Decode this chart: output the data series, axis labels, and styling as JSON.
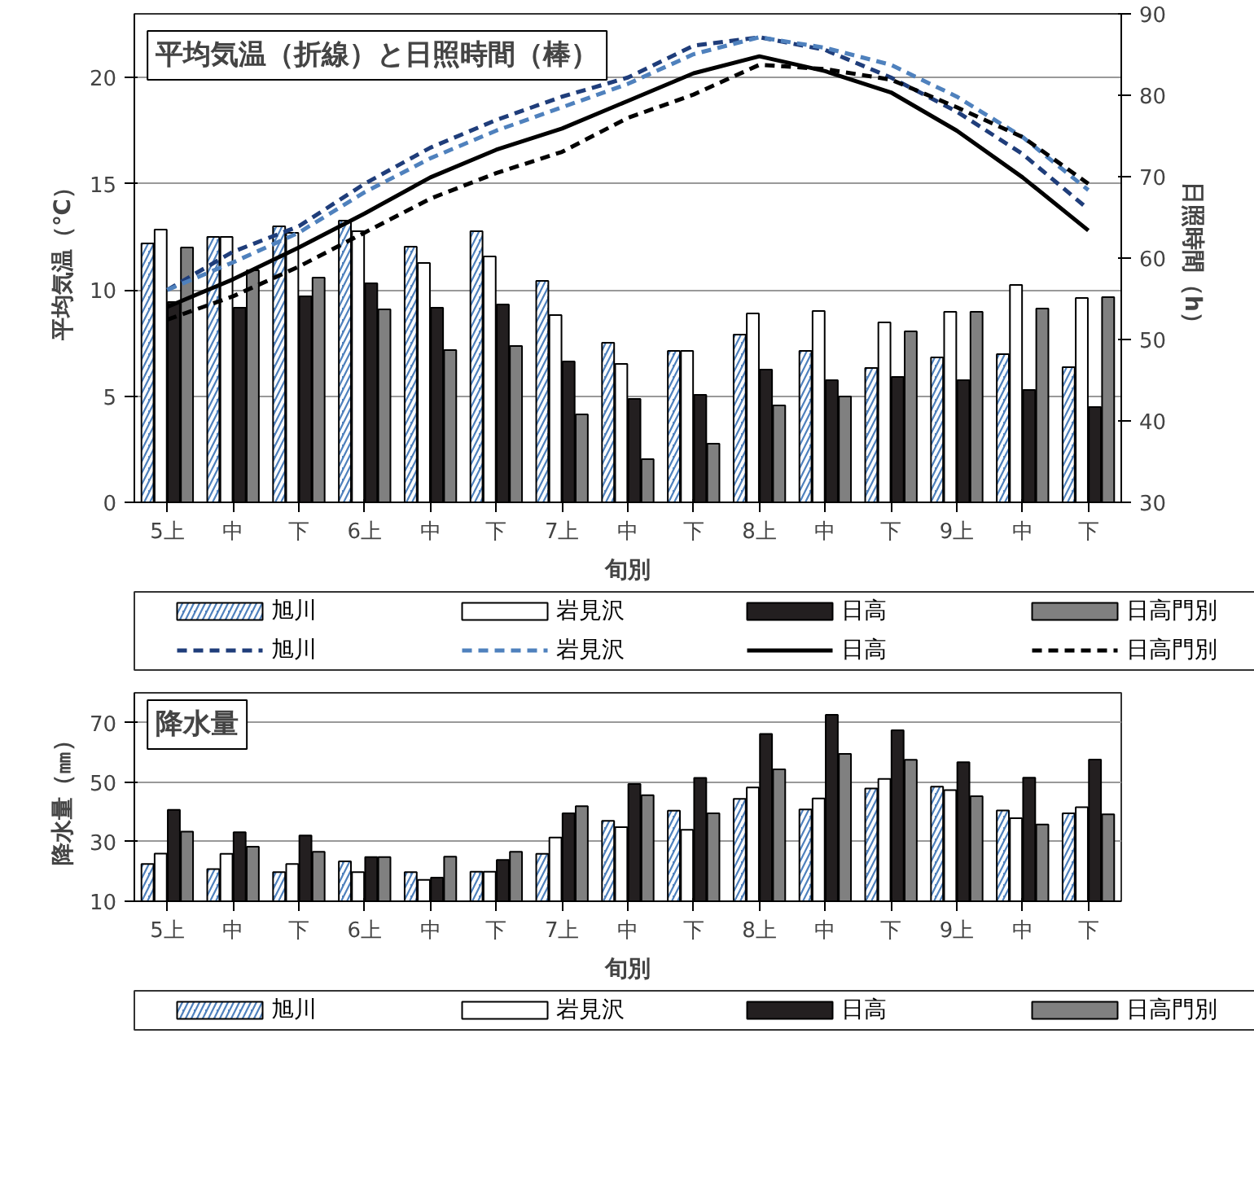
{
  "chart_data": [
    {
      "type": "bar",
      "title": "平均気温（折線）と日照時間（棒）",
      "xlabel": "旬別",
      "ylabel": "平均気温（℃）",
      "y2label": "日照時間（h）",
      "categories": [
        "5上",
        "中",
        "下",
        "6上",
        "中",
        "下",
        "7上",
        "中",
        "下",
        "8上",
        "中",
        "下",
        "9上",
        "中",
        "下"
      ],
      "ylim": [
        0,
        23
      ],
      "yticks": [
        0,
        5,
        10,
        15,
        20
      ],
      "y2lim": [
        30,
        90
      ],
      "y2ticks": [
        30,
        40,
        50,
        60,
        70,
        80,
        90
      ],
      "grid": "y",
      "legend": "bottom",
      "series": [
        {
          "name": "旭川",
          "axis": "y2",
          "color": "#4f81bd",
          "values": [
            61.8,
            62.6,
            63.9,
            64.6,
            61.4,
            63.3,
            57.2,
            49.6,
            48.6,
            50.6,
            48.6,
            46.5,
            47.8,
            48.2,
            46.6
          ]
        },
        {
          "name": "岩見沢",
          "axis": "y2",
          "color": "#ffffff",
          "values": [
            63.5,
            62.6,
            63.1,
            63.3,
            59.4,
            60.2,
            53.0,
            47.0,
            48.6,
            53.2,
            53.5,
            52.1,
            53.4,
            56.7,
            55.1
          ]
        },
        {
          "name": "日高",
          "axis": "y2",
          "color": "#231f20",
          "values": [
            54.6,
            53.9,
            55.3,
            56.9,
            53.9,
            54.3,
            47.3,
            42.7,
            43.2,
            46.3,
            45.0,
            45.4,
            45.0,
            43.8,
            41.7
          ]
        },
        {
          "name": "日高門別",
          "axis": "y2",
          "color": "#808080",
          "values": [
            61.3,
            58.5,
            57.6,
            53.7,
            48.7,
            49.2,
            40.8,
            35.3,
            37.2,
            41.9,
            43.0,
            51.0,
            53.4,
            53.8,
            55.2
          ]
        },
        {
          "name": "旭川",
          "type": "line",
          "axis": "y",
          "line_style": "dashed",
          "color": "#1f3d7a",
          "values": [
            10.0,
            11.8,
            13.0,
            15.0,
            16.7,
            18.0,
            19.1,
            20.0,
            21.5,
            21.9,
            21.3,
            20.0,
            18.4,
            16.4,
            13.8
          ]
        },
        {
          "name": "岩見沢",
          "type": "line",
          "axis": "y",
          "line_style": "dashed",
          "color": "#4f81bd",
          "values": [
            10.0,
            11.3,
            12.7,
            14.6,
            16.2,
            17.5,
            18.6,
            19.7,
            21.1,
            21.9,
            21.4,
            20.6,
            19.1,
            17.2,
            14.7
          ]
        },
        {
          "name": "日高",
          "type": "line",
          "axis": "y",
          "line_style": "solid",
          "color": "#000000",
          "values": [
            9.2,
            10.5,
            12.0,
            13.6,
            15.3,
            16.6,
            17.6,
            18.9,
            20.2,
            21.0,
            20.3,
            19.3,
            17.5,
            15.3,
            12.8
          ]
        },
        {
          "name": "日高門別",
          "type": "line",
          "axis": "y",
          "line_style": "dashed",
          "color": "#000000",
          "values": [
            8.6,
            9.7,
            11.1,
            12.7,
            14.3,
            15.5,
            16.5,
            18.1,
            19.2,
            20.6,
            20.4,
            19.9,
            18.6,
            17.2,
            15.0
          ]
        }
      ]
    },
    {
      "type": "bar",
      "title": "降水量",
      "xlabel": "旬別",
      "ylabel": "降水量（㎜）",
      "categories": [
        "5上",
        "中",
        "下",
        "6上",
        "中",
        "下",
        "7上",
        "中",
        "下",
        "8上",
        "中",
        "下",
        "9上",
        "中",
        "下"
      ],
      "ylim": [
        10,
        80
      ],
      "yticks": [
        10,
        30,
        50,
        70
      ],
      "grid": "y",
      "legend": "bottom",
      "series": [
        {
          "name": "旭川",
          "color": "#4f81bd",
          "values": [
            22.5,
            20.8,
            19.8,
            23.4,
            19.8,
            19.9,
            25.9,
            37.0,
            40.4,
            44.4,
            40.8,
            47.9,
            48.5,
            40.5,
            39.5
          ]
        },
        {
          "name": "岩見沢",
          "color": "#ffffff",
          "values": [
            26.0,
            25.9,
            22.5,
            19.8,
            17.2,
            19.9,
            31.4,
            34.9,
            34.0,
            48.2,
            44.5,
            51.1,
            47.3,
            37.9,
            41.6
          ]
        },
        {
          "name": "日高",
          "color": "#231f20",
          "values": [
            40.7,
            33.2,
            32.1,
            24.8,
            17.9,
            23.9,
            39.5,
            49.4,
            51.4,
            66.2,
            72.6,
            67.4,
            56.7,
            51.5,
            57.6
          ]
        },
        {
          "name": "日高門別",
          "color": "#808080",
          "values": [
            33.4,
            28.3,
            26.6,
            24.8,
            25.0,
            26.6,
            41.9,
            45.6,
            39.5,
            54.3,
            59.5,
            57.5,
            45.3,
            35.8,
            39.2
          ]
        }
      ]
    }
  ]
}
